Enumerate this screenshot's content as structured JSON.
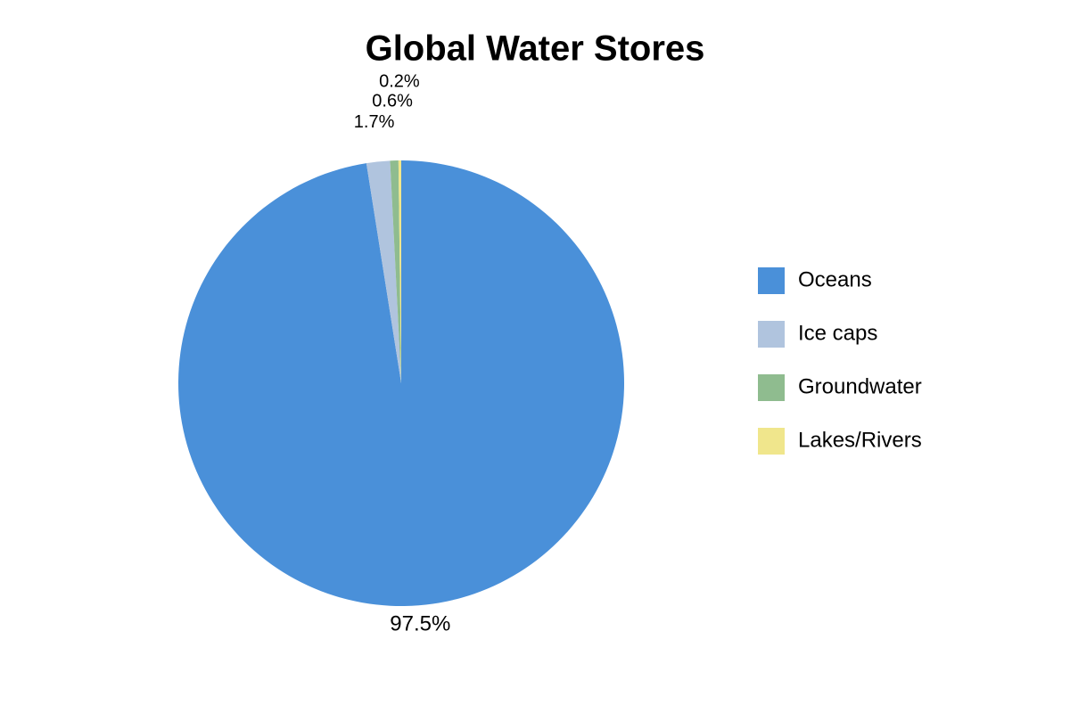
{
  "chart_data": {
    "type": "pie",
    "title": "Global Water Stores",
    "categories": [
      "Oceans",
      "Ice caps",
      "Groundwater",
      "Lakes/Rivers"
    ],
    "values": [
      97.5,
      1.7,
      0.6,
      0.2
    ],
    "value_labels": [
      "97.5%",
      "1.7%",
      "0.6%",
      "0.2%"
    ],
    "colors": [
      "#4a90d9",
      "#b0c4de",
      "#8fbc8f",
      "#f0e68c"
    ],
    "legend": "right"
  }
}
